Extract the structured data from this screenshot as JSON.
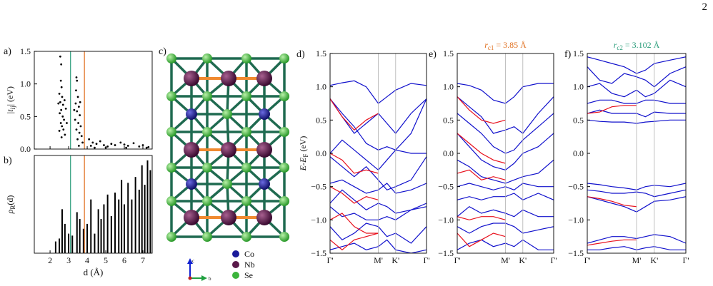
{
  "page_number": "2",
  "structure": {
    "label": "c)",
    "legend": [
      {
        "name": "Co",
        "color": "#1a1a9a"
      },
      {
        "name": "Nb",
        "color": "#5a1a4a"
      },
      {
        "name": "Se",
        "color": "#3cb43c"
      }
    ],
    "axes": [
      "c",
      "b"
    ]
  },
  "chart_data": [
    {
      "type": "scatter",
      "label": "a)",
      "color": "#000000",
      "ylabel": {
        "text": "|t",
        "sub": "ij",
        "after": "| (eV)"
      },
      "x": [
        2.55,
        2.6,
        2.58,
        2.62,
        2.5,
        2.65,
        2.55,
        2.7,
        2.6,
        2.52,
        2.68,
        2.75,
        2.58,
        2.64,
        2.72,
        2.5,
        2.8,
        2.62,
        2.85,
        2.45,
        2.9,
        2.78,
        3.42,
        3.45,
        3.4,
        3.5,
        3.38,
        3.55,
        3.45,
        3.6,
        3.35,
        3.52,
        3.65,
        3.42,
        3.58,
        3.7,
        3.48,
        3.75,
        3.3,
        3.62,
        3.55,
        4.1,
        4.3,
        4.5,
        4.2,
        4.7,
        4.9,
        5.1,
        5.3,
        5.5,
        5.8,
        6.0,
        6.2,
        6.5,
        6.8,
        7.0,
        7.3,
        4.4,
        5.0,
        6.1,
        7.2
      ],
      "values": [
        1.42,
        1.3,
        1.05,
        0.95,
        0.85,
        0.8,
        0.72,
        0.68,
        0.6,
        0.55,
        0.5,
        0.45,
        0.4,
        0.35,
        0.3,
        0.28,
        0.22,
        0.18,
        0.62,
        0.7,
        0.4,
        0.75,
        1.1,
        1.05,
        0.9,
        0.8,
        0.7,
        0.65,
        0.58,
        0.52,
        0.45,
        0.4,
        0.35,
        0.3,
        0.25,
        0.2,
        0.15,
        0.1,
        0.6,
        0.72,
        0.05,
        0.15,
        0.1,
        0.08,
        0.05,
        0.12,
        0.06,
        0.04,
        0.08,
        0.06,
        0.1,
        0.07,
        0.05,
        0.09,
        0.04,
        0.06,
        0.03,
        0.02,
        0.02,
        0.02,
        0.02
      ],
      "xlim": [
        1.15,
        7.5
      ],
      "xticks": [
        2,
        3,
        4,
        5,
        6,
        7
      ],
      "xtick_labels": false,
      "ylim": [
        0,
        1.5
      ],
      "yticks": [
        {
          "value": 0,
          "label": "0.0"
        },
        {
          "value": 0.5,
          "label": "0.5"
        },
        {
          "value": 1,
          "label": "1.0"
        },
        {
          "value": 1.5,
          "label": "1.5"
        }
      ],
      "vlines": [
        {
          "x": 3.102,
          "color": "#2a9d7a"
        },
        {
          "x": 3.85,
          "color": "#e07020"
        }
      ]
    },
    {
      "type": "bar",
      "label": "b)",
      "color": "#000000",
      "ylabel": {
        "text": "ρ",
        "sub": "R",
        "after": "(d)"
      },
      "xlabel": "d (Å)",
      "x": [
        2.3,
        2.5,
        2.65,
        2.8,
        3.0,
        3.2,
        3.45,
        3.6,
        3.8,
        4.0,
        4.2,
        4.4,
        4.6,
        4.75,
        4.9,
        5.1,
        5.3,
        5.5,
        5.7,
        5.85,
        6.0,
        6.2,
        6.4,
        6.6,
        6.8,
        6.95,
        7.1,
        7.25,
        7.4
      ],
      "values": [
        0.12,
        0.15,
        0.45,
        0.3,
        0.2,
        0.18,
        0.42,
        0.35,
        0.25,
        0.3,
        0.55,
        0.2,
        0.45,
        0.35,
        0.5,
        0.6,
        0.38,
        0.62,
        0.55,
        0.75,
        0.5,
        0.72,
        0.55,
        0.78,
        0.65,
        0.9,
        0.7,
        0.95,
        0.85
      ],
      "xlim": [
        1.15,
        7.5
      ],
      "xticks": [
        2,
        3,
        4,
        5,
        6,
        7
      ],
      "xtick_labels": true,
      "ylim": [
        0,
        1
      ],
      "vlines": [
        {
          "x": 3.102,
          "color": "#2a9d7a"
        },
        {
          "x": 3.85,
          "color": "#e07020"
        }
      ]
    },
    {
      "type": "line",
      "label": "d)",
      "ylabel": {
        "text": "E-E",
        "sub": "F",
        "after": " (eV)"
      },
      "x": [
        0,
        0.125,
        0.25,
        0.375,
        0.5,
        0.59,
        0.68,
        0.84,
        1
      ],
      "xlim": [
        0,
        1
      ],
      "xticks": [
        {
          "value": 0,
          "label": "Γ'"
        },
        {
          "value": 0.5,
          "label": "M'"
        },
        {
          "value": 0.68,
          "label": "K'"
        },
        {
          "value": 1,
          "label": "Γ'"
        }
      ],
      "ylim": [
        -1.5,
        1.5
      ],
      "yticks": [
        {
          "value": -1.5,
          "label": "−1.5"
        },
        {
          "value": -1,
          "label": "−1.0"
        },
        {
          "value": -0.5,
          "label": "−0.5"
        },
        {
          "value": 0,
          "label": "0.0"
        },
        {
          "value": 0.5,
          "label": "0.5"
        },
        {
          "value": 1,
          "label": "1.0"
        },
        {
          "value": 1.5,
          "label": "1.5"
        }
      ],
      "grid": "x",
      "series": [
        {
          "color": "#1010cc",
          "values": [
            1.02,
            1.06,
            1.09,
            1.0,
            0.75,
            0.85,
            0.95,
            1.05,
            1.02
          ]
        },
        {
          "color": "#1010cc",
          "values": [
            0.82,
            0.55,
            0.3,
            0.45,
            0.6,
            0.45,
            0.3,
            0.6,
            0.82
          ]
        },
        {
          "color": "#1010cc",
          "values": [
            0.82,
            0.6,
            0.4,
            0.15,
            0.05,
            0.1,
            0.05,
            0.3,
            0.82
          ]
        },
        {
          "color": "#1010cc",
          "values": [
            0.0,
            0.2,
            0.05,
            -0.1,
            -0.25,
            -0.1,
            0.05,
            0.0,
            0.0
          ]
        },
        {
          "color": "#1010cc",
          "values": [
            -0.05,
            -0.2,
            -0.35,
            -0.2,
            -0.4,
            -0.55,
            -0.5,
            -0.4,
            -0.05
          ]
        },
        {
          "color": "#1010cc",
          "values": [
            -0.45,
            -0.4,
            -0.5,
            -0.6,
            -0.55,
            -0.45,
            -0.6,
            -0.55,
            -0.45
          ]
        },
        {
          "color": "#1010cc",
          "values": [
            -0.75,
            -0.55,
            -0.7,
            -0.85,
            -0.75,
            -0.8,
            -0.9,
            -0.85,
            -0.75
          ]
        },
        {
          "color": "#1010cc",
          "values": [
            -0.8,
            -0.95,
            -0.9,
            -1.0,
            -1.0,
            -0.95,
            -1.0,
            -0.85,
            -0.8
          ]
        },
        {
          "color": "#1010cc",
          "values": [
            -1.1,
            -1.3,
            -1.2,
            -1.05,
            -1.1,
            -1.25,
            -1.2,
            -1.35,
            -1.1
          ]
        },
        {
          "color": "#1010cc",
          "values": [
            -1.45,
            -1.4,
            -1.35,
            -1.45,
            -1.4,
            -1.3,
            -1.45,
            -1.5,
            -1.45
          ]
        },
        {
          "color": "#e8101c",
          "values": [
            0.82,
            0.55,
            0.35,
            0.5,
            0.6,
            null,
            null,
            null,
            null
          ]
        },
        {
          "color": "#e8101c",
          "values": [
            0.0,
            -0.1,
            -0.3,
            -0.25,
            -0.3,
            null,
            null,
            null,
            null
          ]
        },
        {
          "color": "#e8101c",
          "values": [
            -0.5,
            -0.6,
            -0.75,
            -0.65,
            -0.7,
            null,
            null,
            null,
            null
          ]
        },
        {
          "color": "#e8101c",
          "values": [
            -1.0,
            -0.9,
            -1.1,
            -1.2,
            -1.2,
            null,
            null,
            null,
            null
          ]
        },
        {
          "color": "#e8101c",
          "values": [
            -1.3,
            -1.45,
            -1.3,
            -1.25,
            -1.2,
            null,
            null,
            null,
            null
          ]
        }
      ]
    },
    {
      "type": "line",
      "label": "e)",
      "title": {
        "text": "r",
        "sub": "c1",
        "after": " = 3.85 Å"
      },
      "title_color": "#e07020",
      "x": [
        0,
        0.125,
        0.25,
        0.375,
        0.5,
        0.59,
        0.68,
        0.84,
        1
      ],
      "xlim": [
        0,
        1
      ],
      "xticks": [
        {
          "value": 0,
          "label": "Γ'"
        },
        {
          "value": 0.5,
          "label": "M'"
        },
        {
          "value": 0.68,
          "label": "K'"
        },
        {
          "value": 1,
          "label": "Γ'"
        }
      ],
      "ylim": [
        -1.5,
        1.5
      ],
      "yticks": [
        {
          "value": -1.5,
          "label": "−1.5"
        },
        {
          "value": -1,
          "label": "−1.0"
        },
        {
          "value": -0.5,
          "label": "−0.5"
        },
        {
          "value": 0,
          "label": "0.0"
        },
        {
          "value": 0.5,
          "label": "0.5"
        },
        {
          "value": 1,
          "label": "1.0"
        },
        {
          "value": 1.5,
          "label": "1.5"
        }
      ],
      "grid": "x",
      "series": [
        {
          "color": "#1010cc",
          "values": [
            1.05,
            1.02,
            0.95,
            0.8,
            0.75,
            0.85,
            1.0,
            1.05,
            1.05
          ]
        },
        {
          "color": "#1010cc",
          "values": [
            0.85,
            0.7,
            0.55,
            0.3,
            0.35,
            0.4,
            0.3,
            0.6,
            0.85
          ]
        },
        {
          "color": "#1010cc",
          "values": [
            0.6,
            0.45,
            0.3,
            0.1,
            0.0,
            0.05,
            0.2,
            0.4,
            0.6
          ]
        },
        {
          "color": "#1010cc",
          "values": [
            0.3,
            0.1,
            -0.1,
            -0.2,
            -0.25,
            -0.15,
            0.0,
            0.1,
            0.3
          ]
        },
        {
          "color": "#1010cc",
          "values": [
            -0.1,
            -0.2,
            -0.35,
            -0.4,
            -0.45,
            -0.4,
            -0.35,
            -0.3,
            -0.1
          ]
        },
        {
          "color": "#1010cc",
          "values": [
            -0.5,
            -0.45,
            -0.5,
            -0.55,
            -0.5,
            -0.55,
            -0.45,
            -0.5,
            -0.5
          ]
        },
        {
          "color": "#1010cc",
          "values": [
            -0.7,
            -0.65,
            -0.7,
            -0.65,
            -0.65,
            -0.6,
            -0.7,
            -0.6,
            -0.7
          ]
        },
        {
          "color": "#1010cc",
          "values": [
            -0.95,
            -0.8,
            -0.9,
            -0.85,
            -0.9,
            -0.95,
            -0.85,
            -0.95,
            -0.95
          ]
        },
        {
          "color": "#1010cc",
          "values": [
            -1.1,
            -1.2,
            -1.1,
            -1.05,
            -1.05,
            -1.1,
            -1.2,
            -1.15,
            -1.1
          ]
        },
        {
          "color": "#1010cc",
          "values": [
            -1.45,
            -1.35,
            -1.3,
            -1.4,
            -1.35,
            -1.4,
            -1.3,
            -1.45,
            -1.45
          ]
        },
        {
          "color": "#e8101c",
          "values": [
            0.85,
            0.65,
            0.5,
            0.45,
            0.5,
            null,
            null,
            null,
            null
          ]
        },
        {
          "color": "#e8101c",
          "values": [
            0.3,
            0.15,
            0.0,
            -0.1,
            -0.15,
            null,
            null,
            null,
            null
          ]
        },
        {
          "color": "#e8101c",
          "values": [
            -0.3,
            -0.25,
            -0.4,
            -0.35,
            -0.4,
            null,
            null,
            null,
            null
          ]
        },
        {
          "color": "#e8101c",
          "values": [
            -0.95,
            -1.0,
            -0.95,
            -0.95,
            -1.0,
            null,
            null,
            null,
            null
          ]
        },
        {
          "color": "#e8101c",
          "values": [
            -1.2,
            -1.4,
            -1.3,
            -1.2,
            -1.25,
            null,
            null,
            null,
            null
          ]
        }
      ]
    },
    {
      "type": "line",
      "label": "f)",
      "title": {
        "text": "r",
        "sub": "c2",
        "after": " = 3.102 Å"
      },
      "title_color": "#2a9d7a",
      "x": [
        0,
        0.125,
        0.25,
        0.375,
        0.5,
        0.59,
        0.68,
        0.84,
        1
      ],
      "xlim": [
        0,
        1
      ],
      "xticks": [
        {
          "value": 0,
          "label": "Γ'"
        },
        {
          "value": 0.5,
          "label": "M'"
        },
        {
          "value": 0.68,
          "label": "K'"
        },
        {
          "value": 1,
          "label": "Γ'"
        }
      ],
      "ylim": [
        -1.5,
        1.5
      ],
      "yticks": [
        {
          "value": -1.5,
          "label": "−1.5"
        },
        {
          "value": -1,
          "label": "−1.0"
        },
        {
          "value": -0.5,
          "label": "−0.5"
        },
        {
          "value": 0,
          "label": "0.0"
        },
        {
          "value": 0.5,
          "label": "0.5"
        },
        {
          "value": 1,
          "label": "1.0"
        },
        {
          "value": 1.5,
          "label": "1.5"
        }
      ],
      "grid": "x",
      "series": [
        {
          "color": "#1010cc",
          "values": [
            1.45,
            1.4,
            1.35,
            1.3,
            1.2,
            1.25,
            1.35,
            1.4,
            1.45
          ]
        },
        {
          "color": "#1010cc",
          "values": [
            1.3,
            1.1,
            1.05,
            1.2,
            1.15,
            1.1,
            1.0,
            1.2,
            1.3
          ]
        },
        {
          "color": "#1010cc",
          "values": [
            1.0,
            1.05,
            0.9,
            0.85,
            0.95,
            0.85,
            0.9,
            1.1,
            1.0
          ]
        },
        {
          "color": "#1010cc",
          "values": [
            0.75,
            0.8,
            0.8,
            0.75,
            0.75,
            0.8,
            0.8,
            0.75,
            0.75
          ]
        },
        {
          "color": "#1010cc",
          "values": [
            0.6,
            0.65,
            0.6,
            0.6,
            0.6,
            0.55,
            0.62,
            0.6,
            0.6
          ]
        },
        {
          "color": "#1010cc",
          "values": [
            0.5,
            0.48,
            0.47,
            0.47,
            0.45,
            0.47,
            0.48,
            0.5,
            0.5
          ]
        },
        {
          "color": "#1010cc",
          "values": [
            -0.45,
            -0.47,
            -0.5,
            -0.52,
            -0.55,
            -0.5,
            -0.48,
            -0.5,
            -0.45
          ]
        },
        {
          "color": "#1010cc",
          "values": [
            -0.55,
            -0.57,
            -0.6,
            -0.6,
            -0.58,
            -0.6,
            -0.65,
            -0.6,
            -0.55
          ]
        },
        {
          "color": "#1010cc",
          "values": [
            -0.65,
            -0.7,
            -0.75,
            -0.8,
            -0.88,
            -0.8,
            -0.72,
            -0.7,
            -0.65
          ]
        },
        {
          "color": "#1010cc",
          "values": [
            -1.35,
            -1.3,
            -1.25,
            -1.25,
            -1.28,
            -1.25,
            -1.22,
            -1.25,
            -1.35
          ]
        },
        {
          "color": "#1010cc",
          "values": [
            -1.45,
            -1.45,
            -1.42,
            -1.4,
            -1.45,
            -1.42,
            -1.4,
            -1.45,
            -1.45
          ]
        },
        {
          "color": "#e8101c",
          "values": [
            0.6,
            0.62,
            0.7,
            0.72,
            0.72,
            null,
            null,
            null,
            null
          ]
        },
        {
          "color": "#e8101c",
          "values": [
            -0.65,
            -0.68,
            -0.72,
            -0.78,
            -0.8,
            null,
            null,
            null,
            null
          ]
        },
        {
          "color": "#e8101c",
          "values": [
            -1.38,
            -1.35,
            -1.32,
            -1.3,
            -1.3,
            null,
            null,
            null,
            null
          ]
        }
      ]
    }
  ]
}
